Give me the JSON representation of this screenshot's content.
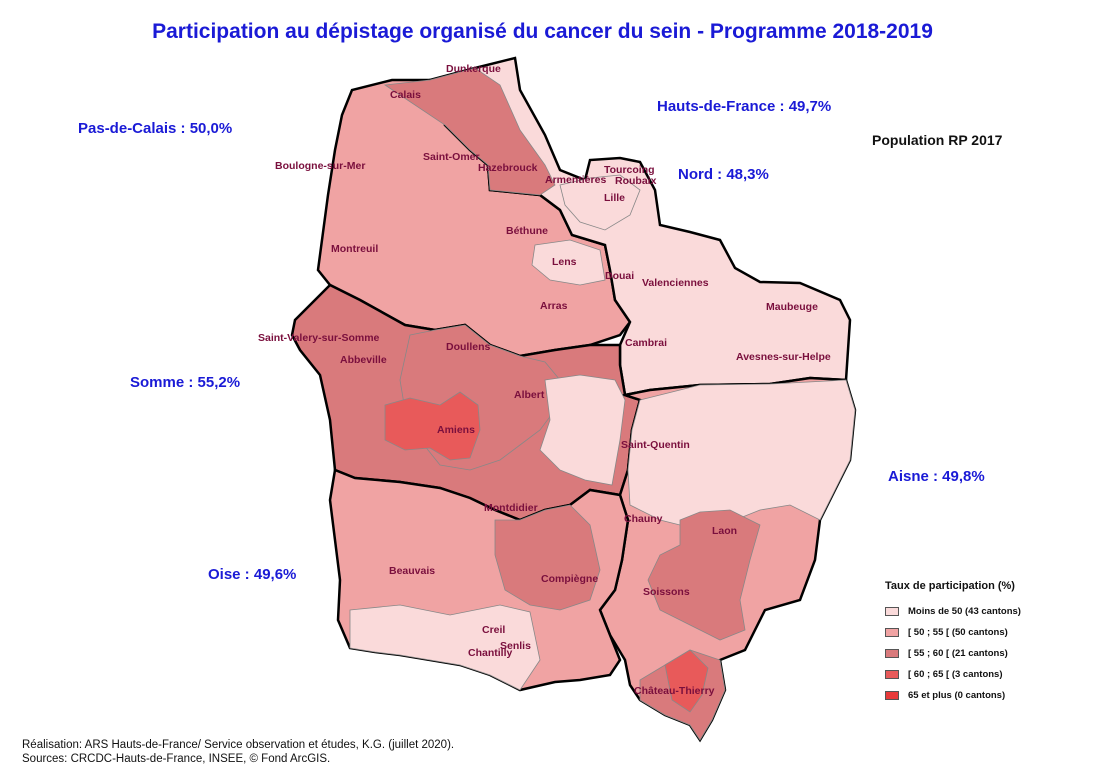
{
  "title": "Participation au dépistage organisé du cancer du sein - Programme 2018-2019",
  "population_note": "Population RP 2017",
  "regions": {
    "hauts_de_france": "Hauts-de-France : 49,7%",
    "pas_de_calais": "Pas-de-Calais : 50,0%",
    "nord": "Nord : 48,3%",
    "somme": "Somme : 55,2%",
    "aisne": "Aisne : 49,8%",
    "oise": "Oise : 49,6%"
  },
  "cities": {
    "dunkerque": "Dunkerque",
    "calais": "Calais",
    "boulogne": "Boulogne-sur-Mer",
    "saint_omer": "Saint-Omer",
    "hazebrouck": "Hazebrouck",
    "armentieres": "Armentières",
    "tourcoing": "Tourcoing",
    "roubaix": "Roubaix",
    "lille": "Lille",
    "bethune": "Béthune",
    "montreuil": "Montreuil",
    "lens": "Lens",
    "douai": "Douai",
    "valenciennes": "Valenciennes",
    "maubeuge": "Maubeuge",
    "arras": "Arras",
    "saint_valery": "Saint-Valery-sur-Somme",
    "abbeville": "Abbeville",
    "doullens": "Doullens",
    "cambrai": "Cambrai",
    "avesnes": "Avesnes-sur-Helpe",
    "albert": "Albert",
    "amiens": "Amiens",
    "saint_quentin": "Saint-Quentin",
    "montdidier": "Montdidier",
    "chauny": "Chauny",
    "laon": "Laon",
    "beauvais": "Beauvais",
    "compiegne": "Compiègne",
    "soissons": "Soissons",
    "creil": "Creil",
    "senlis": "Senlis",
    "chantilly": "Chantilly",
    "chateau_thierry": "Château-Thierry"
  },
  "legend": {
    "title": "Taux de participation (%)",
    "items": [
      {
        "label": "Moins de 50 (43 cantons)",
        "color": "#fadada"
      },
      {
        "label": "[ 50 ; 55 [ (50 cantons)",
        "color": "#f0a3a3"
      },
      {
        "label": "[ 55 ; 60 [ (21 cantons)",
        "color": "#d97a7c"
      },
      {
        "label": "[ 60 ; 65 [ (3 cantons)",
        "color": "#e85a5a"
      },
      {
        "label": "65 et plus (0 cantons)",
        "color": "#e83a3a"
      }
    ]
  },
  "footer": {
    "line1": "Réalisation: ARS Hauts-de-France/ Service observation et études, K.G. (juillet 2020).",
    "line2": "Sources: CRCDC-Hauts-de-France, INSEE, © Fond ArcGIS."
  }
}
